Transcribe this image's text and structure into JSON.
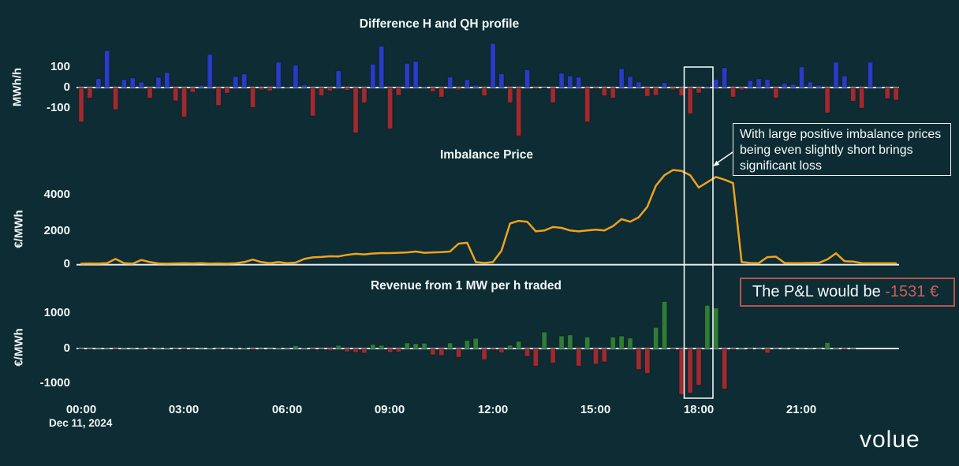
{
  "background": "#0d2c34",
  "colors": {
    "bar_positive_blue": "#2a3bc4",
    "bar_negative_red": "#9e2b30",
    "bar_positive_green": "#2f7d36",
    "line_orange": "#efa31d",
    "axis_line": "#e3eaec",
    "highlight_border": "#ffffff",
    "pnl_border": "#b5544b",
    "pnl_value_red": "#cd5f57",
    "text": "#f1f6f6"
  },
  "xaxis": {
    "labels": [
      "00:00",
      "03:00",
      "06:00",
      "09:00",
      "12:00",
      "15:00",
      "18:00",
      "21:00"
    ],
    "date": "Dec 11, 2024"
  },
  "chart_data": [
    {
      "type": "bar",
      "title": "Difference H and QH profile",
      "ylabel": "MWh/h",
      "yticks": [
        100,
        0,
        -100
      ],
      "ylim": [
        -260,
        240
      ],
      "x_start": "00:00",
      "x_step_minutes": 15,
      "values": [
        -168,
        -51,
        43,
        180,
        -108,
        39,
        47,
        26,
        -51,
        50,
        73,
        -65,
        -144,
        -23,
        11,
        162,
        -87,
        -27,
        54,
        66,
        -97,
        -11,
        -16,
        124,
        4,
        109,
        13,
        -139,
        -40,
        -16,
        82,
        -13,
        -222,
        -74,
        114,
        202,
        -202,
        -38,
        118,
        128,
        7,
        -20,
        -47,
        51,
        -11,
        38,
        11,
        -40,
        215,
        67,
        -74,
        -236,
        87,
        -7,
        -4,
        -74,
        70,
        57,
        51,
        -168,
        -7,
        -40,
        -51,
        92,
        54,
        27,
        -43,
        -38,
        24,
        -11,
        -40,
        -128,
        -27,
        7,
        40,
        97,
        -47,
        -11,
        34,
        43,
        40,
        -51,
        20,
        16,
        101,
        27,
        11,
        -124,
        124,
        57,
        -67,
        -101,
        124,
        7,
        -54,
        -61
      ]
    },
    {
      "type": "line",
      "title": "Imbalance Price",
      "ylabel": "€/MWh",
      "yticks": [
        4000,
        2000,
        0
      ],
      "ylim": [
        0,
        5600
      ],
      "x_start": "00:00",
      "x_step_minutes": 15,
      "values": [
        60,
        70,
        65,
        90,
        330,
        90,
        60,
        270,
        150,
        70,
        60,
        70,
        80,
        70,
        90,
        60,
        70,
        60,
        80,
        150,
        290,
        150,
        90,
        150,
        90,
        120,
        330,
        420,
        440,
        480,
        470,
        560,
        620,
        590,
        640,
        660,
        660,
        680,
        700,
        750,
        680,
        700,
        720,
        750,
        1200,
        1250,
        150,
        100,
        150,
        800,
        2350,
        2500,
        2450,
        1900,
        1950,
        2150,
        2100,
        1950,
        1900,
        1950,
        2000,
        1950,
        2200,
        2600,
        2450,
        2700,
        3300,
        4500,
        5100,
        5400,
        5350,
        5100,
        4400,
        4700,
        5000,
        4850,
        4650,
        150,
        100,
        90,
        430,
        460,
        100,
        90,
        90,
        100,
        110,
        300,
        650,
        200,
        180,
        90,
        80,
        80,
        80,
        80
      ]
    },
    {
      "type": "bar",
      "title": "Revenue from 1 MW per h traded",
      "ylabel": "€/MWh",
      "yticks": [
        1000,
        0,
        -1000
      ],
      "ylim": [
        -1400,
        1400
      ],
      "x_start": "00:00",
      "x_step_minutes": 15,
      "values": [
        -20,
        -12,
        6,
        10,
        -30,
        8,
        6,
        14,
        -25,
        10,
        15,
        -15,
        -22,
        -8,
        5,
        20,
        -15,
        -10,
        12,
        20,
        -40,
        -10,
        -8,
        30,
        10,
        80,
        15,
        -30,
        -15,
        -60,
        90,
        -90,
        -110,
        -130,
        120,
        90,
        -110,
        -95,
        160,
        140,
        150,
        -180,
        -200,
        160,
        -250,
        230,
        290,
        -320,
        -48,
        -119,
        95,
        206,
        -222,
        -500,
        470,
        -413,
        357,
        389,
        -500,
        325,
        -444,
        -381,
        325,
        357,
        298,
        -600,
        -710,
        600,
        1340,
        -30,
        -1310,
        -1270,
        -1045,
        1230,
        1155,
        -1155,
        -40,
        10,
        -20,
        -10,
        -130,
        -10,
        5,
        -15,
        -5,
        5,
        -10,
        170,
        40,
        -35,
        -10,
        0,
        0,
        0,
        0
      ]
    }
  ],
  "annotation": {
    "text": "With large positive imbalance prices being even slightly short brings significant loss"
  },
  "pnl": {
    "label": "The P&L would be ",
    "value": "-1531 €"
  },
  "logo": {
    "text": "volue"
  }
}
